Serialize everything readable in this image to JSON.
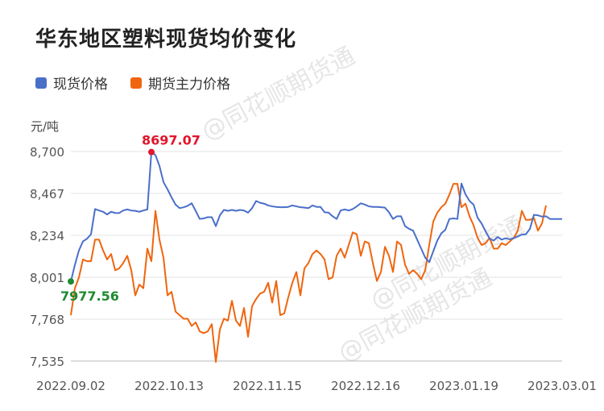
{
  "title": "华东地区塑料现货均价变化",
  "watermark": "@同花顺期货通",
  "chart_data": {
    "type": "line",
    "ylabel": "元/吨",
    "ylim": [
      7535,
      8700
    ],
    "y_ticks": [
      "7,535",
      "7,768",
      "8,001",
      "8,234",
      "8,467",
      "8,700"
    ],
    "x_tick_labels": [
      "2022.09.02",
      "2022.10.13",
      "2022.11.15",
      "2022.12.16",
      "2023.01.19",
      "2023.03.01"
    ],
    "legend_position": "top-left",
    "grid": "horizontal",
    "series": [
      {
        "name": "现货价格",
        "color": "#4a6fc9",
        "values": [
          7977.56,
          8070,
          8150,
          8200,
          8215,
          8240,
          8380,
          8372,
          8365,
          8350,
          8365,
          8358,
          8358,
          8372,
          8378,
          8372,
          8370,
          8365,
          8372,
          8378,
          8697.07,
          8680,
          8620,
          8530,
          8490,
          8445,
          8405,
          8385,
          8390,
          8398,
          8412,
          8370,
          8325,
          8328,
          8335,
          8335,
          8285,
          8345,
          8375,
          8370,
          8375,
          8370,
          8375,
          8372,
          8360,
          8385,
          8425,
          8415,
          8410,
          8400,
          8395,
          8392,
          8390,
          8390,
          8392,
          8400,
          8395,
          8390,
          8388,
          8385,
          8400,
          8392,
          8392,
          8362,
          8360,
          8340,
          8325,
          8372,
          8378,
          8372,
          8380,
          8395,
          8412,
          8405,
          8395,
          8392,
          8392,
          8390,
          8388,
          8362,
          8325,
          8340,
          8340,
          8285,
          8270,
          8260,
          8210,
          8160,
          8110,
          8085,
          8145,
          8205,
          8245,
          8265,
          8325,
          8328,
          8325,
          8522,
          8462,
          8425,
          8405,
          8332,
          8300,
          8255,
          8215,
          8205,
          8225,
          8210,
          8218,
          8212,
          8218,
          8228,
          8238,
          8240,
          8270,
          8348,
          8345,
          8338,
          8340,
          8325,
          8325,
          8325,
          8325
        ],
        "first_label": "7977.56",
        "max_label": "8697.07"
      },
      {
        "name": "期货主力价格",
        "color": "#f0650f",
        "values": [
          7790,
          7940,
          8000,
          8100,
          8090,
          8090,
          8210,
          8210,
          8150,
          8100,
          8130,
          8040,
          8050,
          8080,
          8120,
          8040,
          7900,
          7960,
          7940,
          8160,
          8090,
          8370,
          8210,
          8110,
          7900,
          7920,
          7810,
          7790,
          7770,
          7770,
          7730,
          7750,
          7700,
          7690,
          7700,
          7740,
          7530,
          7710,
          7770,
          7760,
          7870,
          7760,
          7730,
          7830,
          7670,
          7840,
          7880,
          7910,
          7920,
          7970,
          7860,
          7980,
          7790,
          7800,
          7890,
          7970,
          8030,
          7900,
          8050,
          8080,
          8130,
          8150,
          8130,
          8100,
          7990,
          8000,
          8120,
          8160,
          8110,
          8180,
          8250,
          8240,
          8120,
          8200,
          8190,
          8080,
          7980,
          8030,
          8170,
          8120,
          8030,
          8200,
          8180,
          8070,
          8020,
          8040,
          8020,
          7990,
          8040,
          8180,
          8310,
          8360,
          8390,
          8410,
          8460,
          8520,
          8520,
          8390,
          8410,
          8340,
          8290,
          8220,
          8180,
          8190,
          8220,
          8160,
          8160,
          8190,
          8180,
          8200,
          8220,
          8260,
          8370,
          8320,
          8320,
          8330,
          8260,
          8300,
          8400
        ]
      }
    ]
  }
}
